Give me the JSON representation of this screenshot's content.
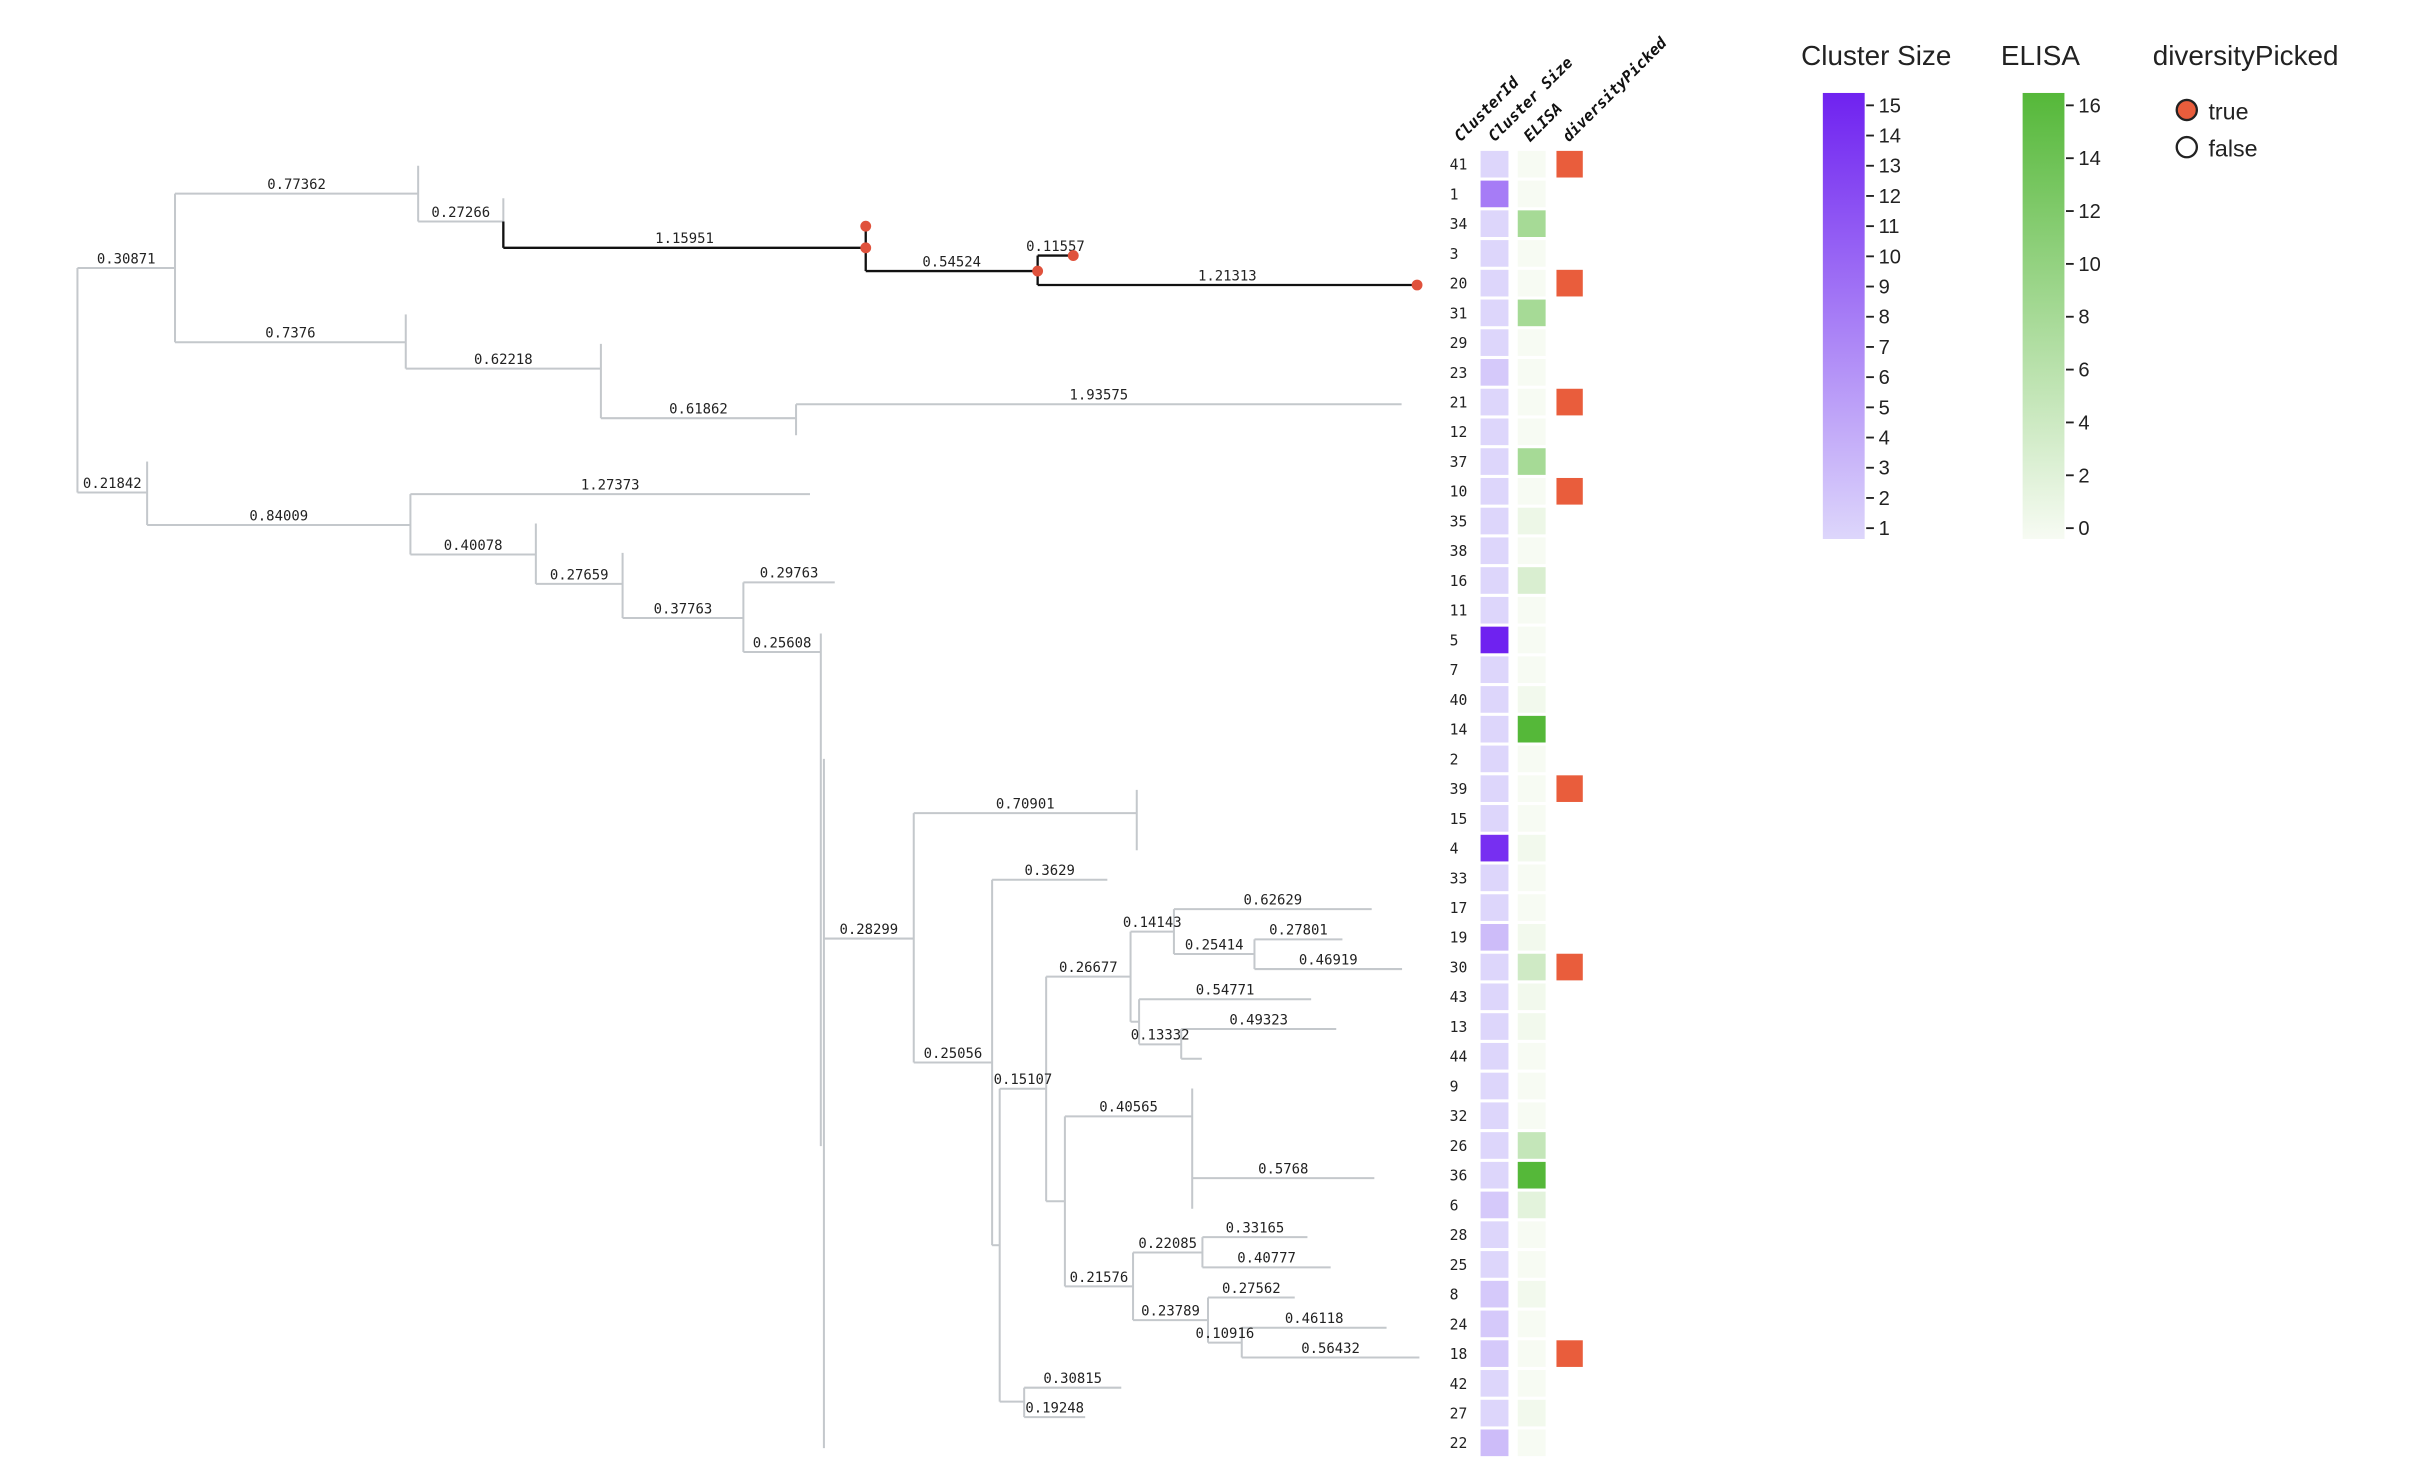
{
  "tree": {
    "branch_labels": [
      "0.30871",
      "0.77362",
      "0.27266",
      "1.15951",
      "0.54524",
      "0.11557",
      "1.21313",
      "0.7376",
      "0.62218",
      "0.61862",
      "1.93575",
      "0.21842",
      "0.84009",
      "1.27373",
      "0.40078",
      "0.27659",
      "0.37763",
      "0.29763",
      "0.25608",
      "0.28299",
      "0.70901",
      "0.25056",
      "0.3629",
      "0.15107",
      "0.26677",
      "0.14143",
      "0.62629",
      "0.25414",
      "0.27801",
      "0.46919",
      "0.54771",
      "0.13332",
      "0.49323",
      "0.40565",
      "0.5768",
      "0.21576",
      "0.22085",
      "0.33165",
      "0.40777",
      "0.23789",
      "0.27562",
      "0.10916",
      "0.46118",
      "0.56432",
      "0.30815",
      "0.19248"
    ],
    "highlight_color": "#111111",
    "edge_color": "#c4c8cc",
    "marker_color": "#e0523c"
  },
  "heatmap": {
    "columns": [
      "ClusterId",
      "Cluster Size",
      "ELISA",
      "diversityPicked"
    ],
    "rows": [
      {
        "id": "41",
        "size": 1,
        "elisa": 0,
        "picked": true
      },
      {
        "id": "1",
        "size": 8,
        "elisa": 0,
        "picked": false
      },
      {
        "id": "34",
        "size": 1,
        "elisa": 8,
        "picked": false
      },
      {
        "id": "3",
        "size": 1,
        "elisa": 0,
        "picked": false
      },
      {
        "id": "20",
        "size": 1,
        "elisa": 0,
        "picked": true
      },
      {
        "id": "31",
        "size": 1,
        "elisa": 8,
        "picked": false
      },
      {
        "id": "29",
        "size": 1,
        "elisa": 0,
        "picked": false
      },
      {
        "id": "23",
        "size": 2,
        "elisa": 0,
        "picked": false
      },
      {
        "id": "21",
        "size": 1,
        "elisa": 0,
        "picked": true
      },
      {
        "id": "12",
        "size": 1,
        "elisa": 0,
        "picked": false
      },
      {
        "id": "37",
        "size": 1,
        "elisa": 8,
        "picked": false
      },
      {
        "id": "10",
        "size": 1,
        "elisa": 0,
        "picked": true
      },
      {
        "id": "35",
        "size": 1,
        "elisa": 1,
        "picked": false
      },
      {
        "id": "38",
        "size": 1,
        "elisa": 0,
        "picked": false
      },
      {
        "id": "16",
        "size": 1,
        "elisa": 3,
        "picked": false
      },
      {
        "id": "11",
        "size": 1,
        "elisa": 0,
        "picked": false
      },
      {
        "id": "5",
        "size": 15,
        "elisa": 0,
        "picked": false
      },
      {
        "id": "7",
        "size": 1,
        "elisa": 0,
        "picked": false
      },
      {
        "id": "40",
        "size": 1,
        "elisa": 0.5,
        "picked": false
      },
      {
        "id": "14",
        "size": 1,
        "elisa": 16,
        "picked": false
      },
      {
        "id": "2",
        "size": 1,
        "elisa": 0,
        "picked": false
      },
      {
        "id": "39",
        "size": 1,
        "elisa": 0,
        "picked": true
      },
      {
        "id": "15",
        "size": 1,
        "elisa": 0,
        "picked": false
      },
      {
        "id": "4",
        "size": 14,
        "elisa": 0.5,
        "picked": false
      },
      {
        "id": "33",
        "size": 1,
        "elisa": 0,
        "picked": false
      },
      {
        "id": "17",
        "size": 1,
        "elisa": 0,
        "picked": false
      },
      {
        "id": "19",
        "size": 3,
        "elisa": 0.5,
        "picked": false
      },
      {
        "id": "30",
        "size": 1,
        "elisa": 4,
        "picked": true
      },
      {
        "id": "43",
        "size": 1,
        "elisa": 0.5,
        "picked": false
      },
      {
        "id": "13",
        "size": 1,
        "elisa": 0.5,
        "picked": false
      },
      {
        "id": "44",
        "size": 1,
        "elisa": 0,
        "picked": false
      },
      {
        "id": "9",
        "size": 1,
        "elisa": 0,
        "picked": false
      },
      {
        "id": "32",
        "size": 1,
        "elisa": 0,
        "picked": false
      },
      {
        "id": "26",
        "size": 1,
        "elisa": 5,
        "picked": false
      },
      {
        "id": "36",
        "size": 1,
        "elisa": 16,
        "picked": false
      },
      {
        "id": "6",
        "size": 2,
        "elisa": 2,
        "picked": false
      },
      {
        "id": "28",
        "size": 1,
        "elisa": 0,
        "picked": false
      },
      {
        "id": "25",
        "size": 1,
        "elisa": 0,
        "picked": false
      },
      {
        "id": "8",
        "size": 2,
        "elisa": 0.5,
        "picked": false
      },
      {
        "id": "24",
        "size": 2,
        "elisa": 0,
        "picked": false
      },
      {
        "id": "18",
        "size": 2,
        "elisa": 0,
        "picked": true
      },
      {
        "id": "42",
        "size": 1,
        "elisa": 0,
        "picked": false
      },
      {
        "id": "27",
        "size": 1,
        "elisa": 0.5,
        "picked": false
      },
      {
        "id": "22",
        "size": 3,
        "elisa": 0,
        "picked": false
      }
    ]
  },
  "legends": {
    "cluster_size": {
      "title": "Cluster Size",
      "min": 1,
      "max": 15,
      "ticks": [
        "15",
        "14",
        "13",
        "12",
        "11",
        "10",
        "9",
        "8",
        "7",
        "6",
        "5",
        "4",
        "3",
        "2",
        "1"
      ],
      "color_low": "#ddd6fb",
      "color_high": "#6f22f0"
    },
    "elisa": {
      "title": "ELISA",
      "min": 0,
      "max": 16,
      "ticks": [
        "16",
        "14",
        "12",
        "10",
        "8",
        "6",
        "4",
        "2",
        "0"
      ],
      "color_low": "#f7fbf3",
      "color_high": "#55b839"
    },
    "diversity_picked": {
      "title": "diversityPicked",
      "items": [
        {
          "label": "true",
          "color": "#e95d3c"
        },
        {
          "label": "false",
          "color": "#ffffff"
        }
      ]
    }
  }
}
